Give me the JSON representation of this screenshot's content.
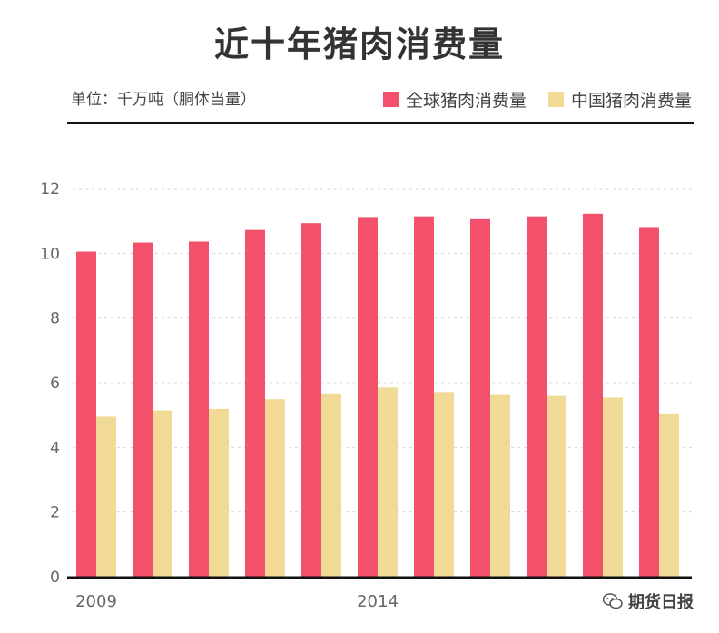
{
  "chart_data": {
    "type": "bar",
    "title": "近十年猪肉消费量",
    "unit_note": "单位：千万吨（胴体当量）",
    "categories": [
      "2009",
      "2010",
      "2011",
      "2012",
      "2013",
      "2014",
      "2015",
      "2016",
      "2017",
      "2018",
      "2019"
    ],
    "x_tick_labels": [
      "2009",
      "",
      "",
      "",
      "",
      "2014",
      "",
      "",
      "",
      "",
      ""
    ],
    "y_ticks": [
      "0",
      "2",
      "4",
      "6",
      "8",
      "10",
      "12"
    ],
    "ylim": [
      0,
      12
    ],
    "grid": true,
    "legend_position": "top-right",
    "series": [
      {
        "name": "全球猪肉消费量",
        "color": "#f2506b",
        "values": [
          10.05,
          10.33,
          10.36,
          10.72,
          10.93,
          11.12,
          11.14,
          11.08,
          11.14,
          11.22,
          10.81
        ]
      },
      {
        "name": "中国猪肉消费量",
        "color": "#f0da96",
        "values": [
          4.95,
          5.14,
          5.19,
          5.49,
          5.67,
          5.85,
          5.71,
          5.62,
          5.59,
          5.54,
          5.05
        ]
      }
    ]
  },
  "watermark": {
    "text": "期货日报",
    "icon": "wechat-icon"
  }
}
